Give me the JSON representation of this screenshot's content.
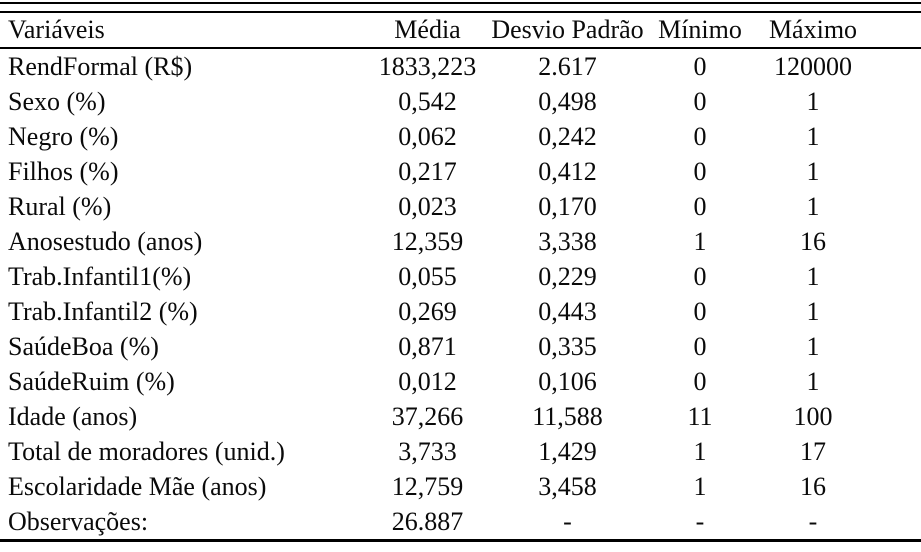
{
  "colors": {
    "background": "#ffffff",
    "text": "#0a0a0a",
    "rule": "#000000"
  },
  "table": {
    "columns": [
      "Variáveis",
      "Média",
      "Desvio Padrão",
      "Mínimo",
      "Máximo"
    ],
    "rows": [
      [
        "RendFormal (R$)",
        "1833,223",
        "2.617",
        "0",
        "120000"
      ],
      [
        "Sexo (%)",
        "0,542",
        "0,498",
        "0",
        "1"
      ],
      [
        "Negro (%)",
        "0,062",
        "0,242",
        "0",
        "1"
      ],
      [
        "Filhos (%)",
        "0,217",
        "0,412",
        "0",
        "1"
      ],
      [
        "Rural (%)",
        "0,023",
        "0,170",
        "0",
        "1"
      ],
      [
        "Anosestudo (anos)",
        "12,359",
        "3,338",
        "1",
        "16"
      ],
      [
        "Trab.Infantil1(%)",
        "0,055",
        "0,229",
        "0",
        "1"
      ],
      [
        "Trab.Infantil2 (%)",
        "0,269",
        "0,443",
        "0",
        "1"
      ],
      [
        "SaúdeBoa (%)",
        "0,871",
        "0,335",
        "0",
        "1"
      ],
      [
        "SaúdeRuim (%)",
        "0,012",
        "0,106",
        "0",
        "1"
      ],
      [
        "Idade (anos)",
        "37,266",
        "11,588",
        "11",
        "100"
      ],
      [
        "Total de moradores (unid.)",
        "3,733",
        "1,429",
        "1",
        "17"
      ],
      [
        "Escolaridade Mãe (anos)",
        "12,759",
        "3,458",
        "1",
        "16"
      ],
      [
        "Observações:",
        "26.887",
        "-",
        "-",
        "-"
      ]
    ]
  }
}
